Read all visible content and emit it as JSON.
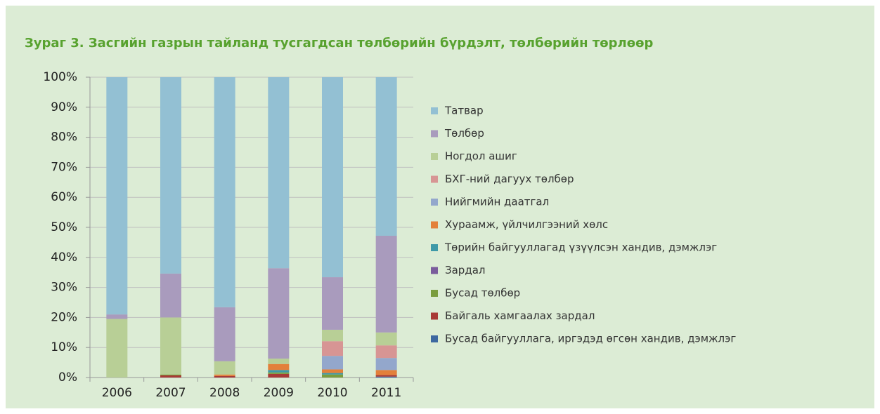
{
  "chart_data": {
    "type": "stacked_bar",
    "title": "Зураг 3. Засгийн газрын тайланд тусгагдсан төлбөрийн бүрдэлт, төлбөрийн төрлөөр",
    "categories": [
      "2006",
      "2007",
      "2008",
      "2009",
      "2010",
      "2011"
    ],
    "series": [
      {
        "name": "Татвар",
        "color": "#93c0d3",
        "values": [
          79,
          65.4,
          76.6,
          63.6,
          66.6,
          52.8
        ]
      },
      {
        "name": "Төлбөр",
        "color": "#a99bbd",
        "values": [
          1.5,
          14.6,
          18,
          30.1,
          17.5,
          32.2
        ]
      },
      {
        "name": "Ногдол ашиг",
        "color": "#b8cf96",
        "values": [
          19.5,
          19,
          4.4,
          1.8,
          3.8,
          4.3
        ]
      },
      {
        "name": "БХГ-ний дагуух төлбөр",
        "color": "#d79594",
        "values": [
          0,
          0,
          0,
          0,
          4.9,
          4.2
        ]
      },
      {
        "name": "Нийгмийн даатгал",
        "color": "#93a7cc",
        "values": [
          0,
          0,
          0,
          0,
          4.5,
          4
        ]
      },
      {
        "name": "Хураамж, үйлчилгээний хөлс",
        "color": "#e3803a",
        "values": [
          0,
          0,
          0.5,
          2,
          1.2,
          1.7
        ]
      },
      {
        "name": "Төрийн байгууллагад үзүүлсэн хандив, дэмжлэг",
        "color": "#3e99a8",
        "values": [
          0,
          0,
          0,
          0.8,
          0.5,
          0
        ]
      },
      {
        "name": "Зардал",
        "color": "#7a5c9c",
        "values": [
          0,
          0,
          0,
          0,
          0,
          0
        ]
      },
      {
        "name": "Бусад төлбөр",
        "color": "#7a9d3e",
        "values": [
          0,
          0.3,
          0,
          0.5,
          1,
          0
        ]
      },
      {
        "name": "Байгаль хамгаалах зардал",
        "color": "#a83a36",
        "values": [
          0,
          0.7,
          0.5,
          1.2,
          0,
          0.5
        ]
      },
      {
        "name": "Бусад байгууллага, иргэдэд өгсөн хандив, дэмжлэг",
        "color": "#3d68a0",
        "values": [
          0,
          0,
          0,
          0,
          0,
          0.3
        ]
      }
    ],
    "ylim": [
      0,
      100
    ],
    "yticks": [
      {
        "value": 0,
        "label": "0%"
      },
      {
        "value": 10,
        "label": "10%"
      },
      {
        "value": 20,
        "label": "20%"
      },
      {
        "value": 30,
        "label": "30%"
      },
      {
        "value": 40,
        "label": "40%"
      },
      {
        "value": 50,
        "label": "50%"
      },
      {
        "value": 60,
        "label": "60%"
      },
      {
        "value": 70,
        "label": "70%"
      },
      {
        "value": 80,
        "label": "80%"
      },
      {
        "value": 90,
        "label": "90%"
      },
      {
        "value": 100,
        "label": "100%"
      }
    ],
    "grid": true,
    "legend": "right"
  }
}
